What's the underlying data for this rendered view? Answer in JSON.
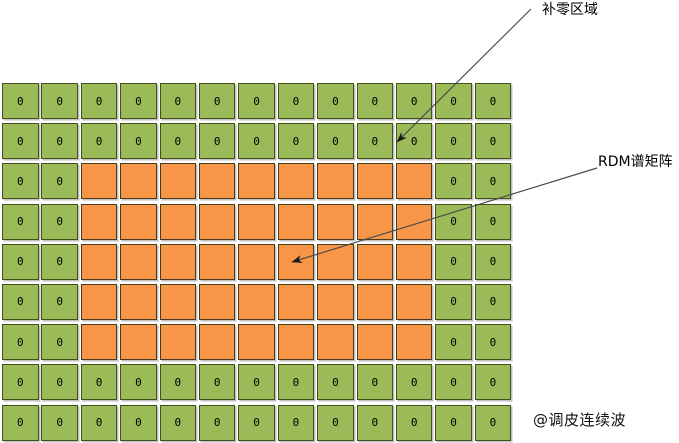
{
  "diagram": {
    "title_none": "",
    "grid": {
      "rows": 9,
      "cols": 13,
      "zero_text": "0",
      "matrix": [
        [
          "z",
          "z",
          "z",
          "z",
          "z",
          "z",
          "z",
          "z",
          "z",
          "z",
          "z",
          "z",
          "z"
        ],
        [
          "z",
          "z",
          "z",
          "z",
          "z",
          "z",
          "z",
          "z",
          "z",
          "z",
          "z",
          "z",
          "z"
        ],
        [
          "z",
          "z",
          "r",
          "r",
          "r",
          "r",
          "r",
          "r",
          "r",
          "r",
          "r",
          "z",
          "z"
        ],
        [
          "z",
          "z",
          "r",
          "r",
          "r",
          "r",
          "r",
          "r",
          "r",
          "r",
          "r",
          "z",
          "z"
        ],
        [
          "z",
          "z",
          "r",
          "r",
          "r",
          "r",
          "r",
          "r",
          "r",
          "r",
          "r",
          "z",
          "z"
        ],
        [
          "z",
          "z",
          "r",
          "r",
          "r",
          "r",
          "r",
          "r",
          "r",
          "r",
          "r",
          "z",
          "z"
        ],
        [
          "z",
          "z",
          "r",
          "r",
          "r",
          "r",
          "r",
          "r",
          "r",
          "r",
          "r",
          "z",
          "z"
        ],
        [
          "z",
          "z",
          "z",
          "z",
          "z",
          "z",
          "z",
          "z",
          "z",
          "z",
          "z",
          "z",
          "z"
        ],
        [
          "z",
          "z",
          "z",
          "z",
          "z",
          "z",
          "z",
          "z",
          "z",
          "z",
          "z",
          "z",
          "z"
        ]
      ],
      "colors": {
        "zero_fill": "#9bbb59",
        "zero_border": "#42501d",
        "rdm_fill": "#f79646",
        "rdm_border": "#4a3a22",
        "arrow": "#333333"
      }
    },
    "annotations": {
      "padding_label": "补零区域",
      "rdm_label": "RDM谱矩阵"
    },
    "watermark": "@调皮连续波"
  }
}
